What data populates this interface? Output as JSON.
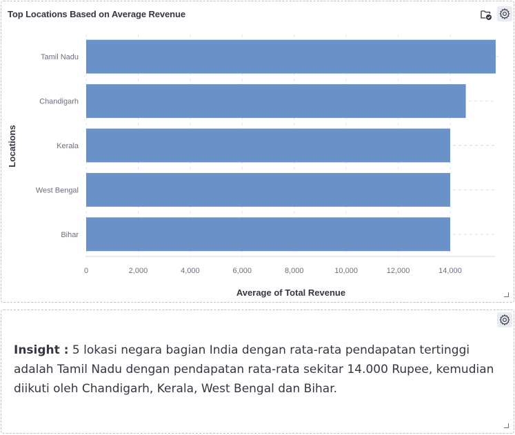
{
  "chart_panel": {
    "title": "Top Locations Based on Average Revenue",
    "icons": {
      "folder": "folder-check-icon",
      "settings": "gear-icon"
    }
  },
  "chart_data": {
    "type": "bar",
    "orientation": "horizontal",
    "categories": [
      "Tamil Nadu",
      "Chandigarh",
      "Kerala",
      "West Bengal",
      "Bihar"
    ],
    "values": [
      15750,
      14600,
      14000,
      14000,
      14000
    ],
    "xlabel": "Average of Total Revenue",
    "ylabel": "Locations",
    "xlim": [
      0,
      15750
    ],
    "x_ticks": [
      "0",
      "2,000",
      "4,000",
      "6,000",
      "8,000",
      "10,000",
      "12,000",
      "14,000"
    ],
    "x_tick_values": [
      0,
      2000,
      4000,
      6000,
      8000,
      10000,
      12000,
      14000
    ],
    "bar_color": "#6a92c8",
    "grid": "vertical-dashed",
    "legend": "none"
  },
  "insight_panel": {
    "label": "Insight :",
    "text": "5 lokasi negara bagian India dengan rata-rata pendapatan tertinggi adalah Tamil Nadu dengan pendapatan rata-rata sekitar 14.000 Rupee, kemudian diikuti oleh Chandigarh, Kerala, West Bengal dan Bihar.",
    "icons": {
      "settings": "gear-icon"
    }
  }
}
